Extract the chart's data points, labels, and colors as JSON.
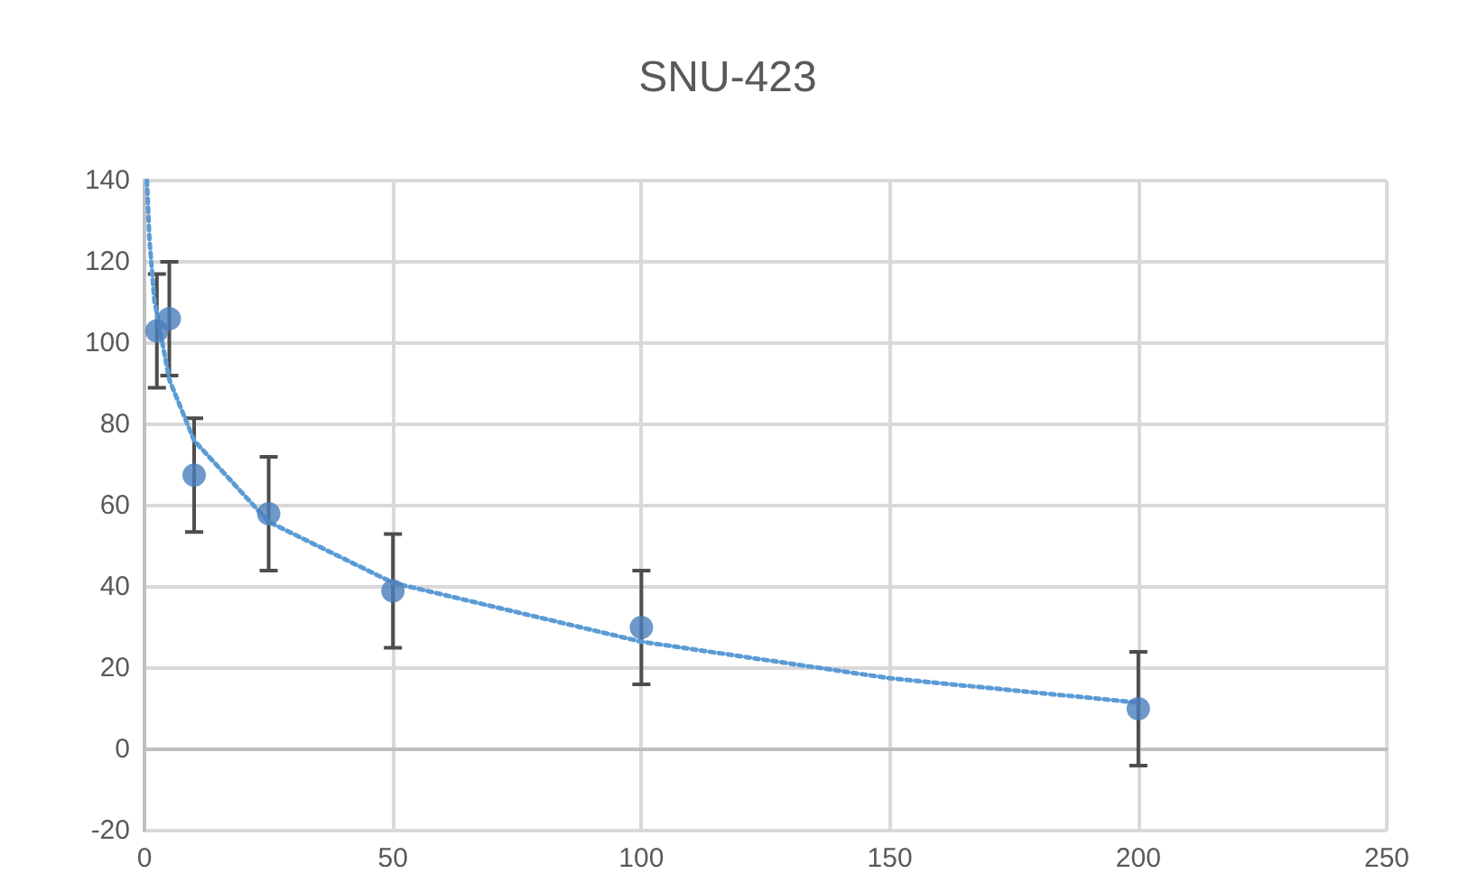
{
  "chart_data": {
    "type": "scatter",
    "title": "SNU-423",
    "xlim": [
      0,
      250
    ],
    "xticks": [
      0,
      50,
      100,
      150,
      200,
      250
    ],
    "ylim": [
      -20,
      140
    ],
    "yticks": [
      -20,
      0,
      20,
      40,
      60,
      80,
      100,
      120,
      140
    ],
    "grid": true,
    "series": [
      {
        "color": "#4a7ebb",
        "marker": "circle",
        "x": [
          2.5,
          5,
          10,
          25,
          50,
          100,
          200
        ],
        "values": [
          103,
          106,
          67.5,
          58,
          39,
          30,
          10
        ],
        "errors": [
          14,
          14,
          14,
          14,
          14,
          14,
          14
        ]
      },
      {
        "type": "line",
        "color": "#5b9bd5",
        "marker": "none",
        "line_style": "dotted",
        "x": [
          0.5,
          1,
          2,
          5,
          10,
          25,
          50,
          100,
          150,
          200
        ],
        "values": [
          140,
          125.5,
          110.5,
          91,
          76,
          56,
          41,
          26.5,
          17.5,
          11.5
        ]
      }
    ]
  }
}
